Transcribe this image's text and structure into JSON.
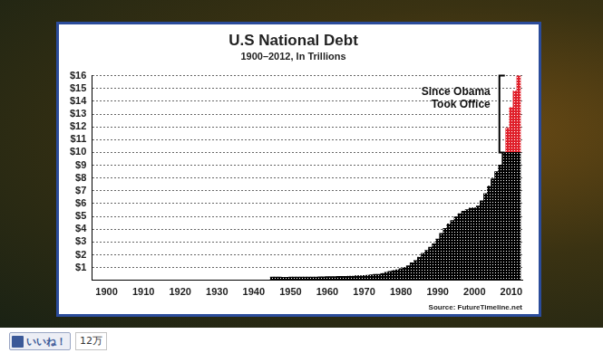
{
  "chart_data": {
    "type": "bar",
    "title": "U.S National Debt",
    "subtitle": "1900–2012, In Trillions",
    "annotation": "Since Obama Took Office",
    "source": "Source: FutureTimeline.net",
    "stacked": true,
    "grid": true,
    "x": [
      1945,
      1946,
      1947,
      1948,
      1949,
      1950,
      1951,
      1952,
      1953,
      1954,
      1955,
      1956,
      1957,
      1958,
      1959,
      1960,
      1961,
      1962,
      1963,
      1964,
      1965,
      1966,
      1967,
      1968,
      1969,
      1970,
      1971,
      1972,
      1973,
      1974,
      1975,
      1976,
      1977,
      1978,
      1979,
      1980,
      1981,
      1982,
      1983,
      1984,
      1985,
      1986,
      1987,
      1988,
      1989,
      1990,
      1991,
      1992,
      1993,
      1994,
      1995,
      1996,
      1997,
      1998,
      1999,
      2000,
      2001,
      2002,
      2003,
      2004,
      2005,
      2006,
      2007,
      2008,
      2009,
      2010,
      2011,
      2012
    ],
    "series": [
      {
        "color": "#000000",
        "values": [
          0.26,
          0.27,
          0.26,
          0.25,
          0.25,
          0.26,
          0.26,
          0.26,
          0.27,
          0.27,
          0.27,
          0.27,
          0.27,
          0.28,
          0.28,
          0.29,
          0.29,
          0.3,
          0.31,
          0.32,
          0.32,
          0.33,
          0.34,
          0.37,
          0.37,
          0.38,
          0.41,
          0.44,
          0.47,
          0.48,
          0.54,
          0.63,
          0.71,
          0.78,
          0.83,
          0.91,
          1.0,
          1.14,
          1.37,
          1.56,
          1.82,
          2.12,
          2.35,
          2.6,
          2.86,
          3.23,
          3.67,
          4.06,
          4.41,
          4.69,
          4.97,
          5.22,
          5.41,
          5.53,
          5.66,
          5.67,
          5.81,
          6.23,
          6.78,
          7.38,
          7.93,
          8.51,
          9.01,
          10.0,
          10.0,
          10.0,
          10.0,
          10.0
        ]
      },
      {
        "color": "#e0202b",
        "values": [
          null,
          null,
          null,
          null,
          null,
          null,
          null,
          null,
          null,
          null,
          null,
          null,
          null,
          null,
          null,
          null,
          null,
          null,
          null,
          null,
          null,
          null,
          null,
          null,
          null,
          null,
          null,
          null,
          null,
          null,
          null,
          null,
          null,
          null,
          null,
          null,
          null,
          null,
          null,
          null,
          null,
          null,
          null,
          null,
          null,
          null,
          null,
          null,
          null,
          null,
          null,
          null,
          null,
          null,
          null,
          null,
          null,
          null,
          null,
          null,
          null,
          null,
          null,
          null,
          1.9,
          3.5,
          4.8,
          6.0
        ]
      }
    ],
    "xlim": [
      1896,
      2013
    ],
    "xticks": [
      1900,
      1910,
      1920,
      1930,
      1940,
      1950,
      1960,
      1970,
      1980,
      1990,
      2000,
      2010
    ],
    "ylim": [
      0,
      16
    ],
    "yticks": [
      {
        "value": 1,
        "label": "$1"
      },
      {
        "value": 2,
        "label": "$2"
      },
      {
        "value": 3,
        "label": "$3"
      },
      {
        "value": 4,
        "label": "$4"
      },
      {
        "value": 5,
        "label": "$5"
      },
      {
        "value": 6,
        "label": "$6"
      },
      {
        "value": 7,
        "label": "$7"
      },
      {
        "value": 8,
        "label": "$8"
      },
      {
        "value": 9,
        "label": "$9"
      },
      {
        "value": 10,
        "label": "$10"
      },
      {
        "value": 11,
        "label": "$11"
      },
      {
        "value": 12,
        "label": "$12"
      },
      {
        "value": 13,
        "label": "$13"
      },
      {
        "value": 14,
        "label": "$14"
      },
      {
        "value": 15,
        "label": "$15"
      },
      {
        "value": 16,
        "label": "$16"
      }
    ]
  },
  "footer": {
    "button": "いいね！",
    "count": "12万"
  }
}
